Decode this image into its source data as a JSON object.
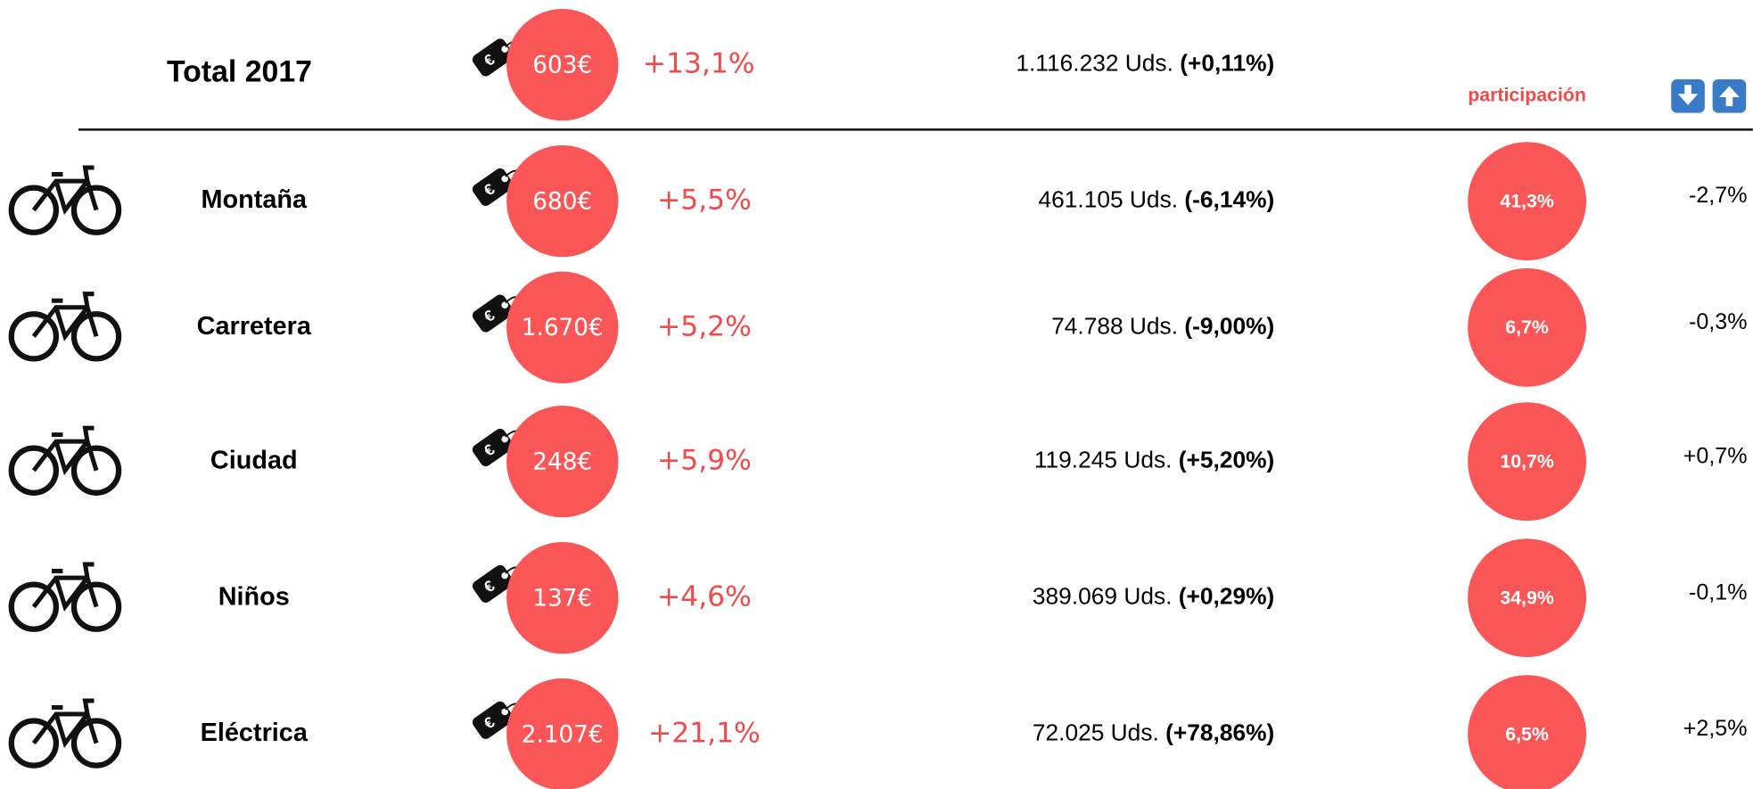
{
  "header": {
    "title": "Total 2017",
    "price": "603€",
    "price_change": "+13,1%",
    "units": "1.116.232 Uds.",
    "units_change": "(+0,11%)",
    "share_label": "participación"
  },
  "rows": [
    {
      "name": "Montaña",
      "price": "680€",
      "price_change": "+5,5%",
      "units": "461.105 Uds.",
      "units_change": "(-6,14%)",
      "share": "41,3%",
      "share_change": "-2,7%"
    },
    {
      "name": "Carretera",
      "price": "1.670€",
      "price_change": "+5,2%",
      "units": "74.788 Uds.",
      "units_change": "(-9,00%)",
      "share": "6,7%",
      "share_change": "-0,3%"
    },
    {
      "name": "Ciudad",
      "price": "248€",
      "price_change": "+5,9%",
      "units": "119.245 Uds.",
      "units_change": "(+5,20%)",
      "share": "10,7%",
      "share_change": "+0,7%"
    },
    {
      "name": "Niños",
      "price": "137€",
      "price_change": "+4,6%",
      "units": "389.069 Uds.",
      "units_change": "(+0,29%)",
      "share": "34,9%",
      "share_change": "-0,1%"
    },
    {
      "name": "Eléctrica",
      "price": "2.107€",
      "price_change": "+21,1%",
      "units": "72.025 Uds.",
      "units_change": "(+78,86%)",
      "share": "6,5%",
      "share_change": "+2,5%"
    }
  ]
}
